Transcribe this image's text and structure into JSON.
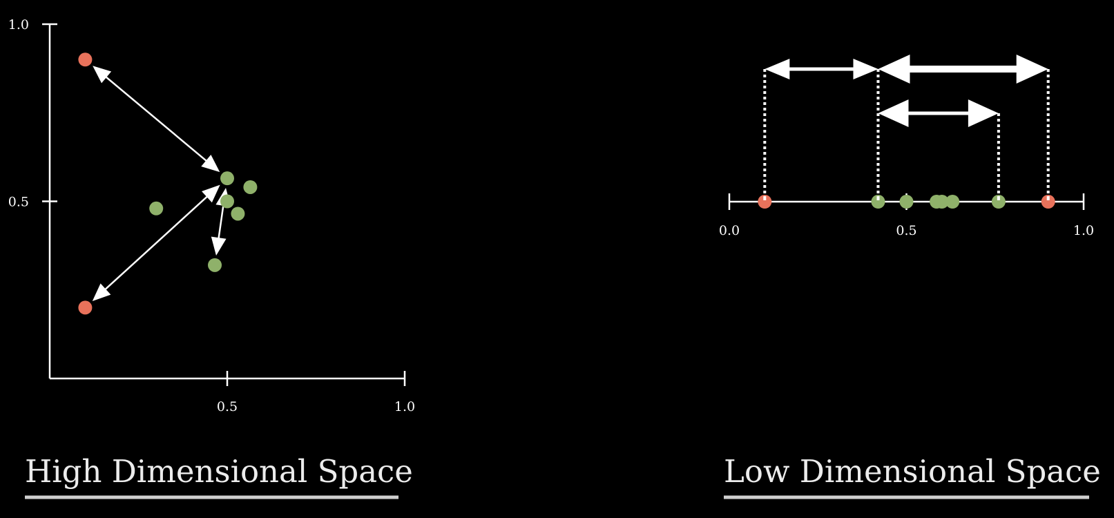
{
  "colors": {
    "background": "#000000",
    "axis": "#ffffff",
    "green_point": "#8fb16a",
    "red_point": "#e8725b",
    "title_text": "#ececec",
    "title_underline": "#cfcfcf"
  },
  "high_dim": {
    "title": "High Dimensional Space",
    "x_ticks": [
      {
        "value": 0.5,
        "label": "0.5"
      },
      {
        "value": 1.0,
        "label": "1.0"
      }
    ],
    "y_ticks": [
      {
        "value": 0.5,
        "label": "0.5"
      },
      {
        "value": 1.0,
        "label": "1.0"
      }
    ],
    "points": [
      {
        "x": 0.1,
        "y": 0.9,
        "group": "red"
      },
      {
        "x": 0.1,
        "y": 0.2,
        "group": "red"
      },
      {
        "x": 0.3,
        "y": 0.48,
        "group": "green"
      },
      {
        "x": 0.5,
        "y": 0.565,
        "group": "green"
      },
      {
        "x": 0.565,
        "y": 0.54,
        "group": "green"
      },
      {
        "x": 0.5,
        "y": 0.5,
        "group": "green"
      },
      {
        "x": 0.53,
        "y": 0.465,
        "group": "green"
      },
      {
        "x": 0.465,
        "y": 0.32,
        "group": "green"
      }
    ],
    "distance_arrows": [
      {
        "from": 0,
        "to": 3
      },
      {
        "from": 1,
        "to": 3
      },
      {
        "from": 7,
        "to": 3
      }
    ]
  },
  "low_dim": {
    "title": "Low Dimensional Space",
    "x_ticks": [
      {
        "value": 0.0,
        "label": "0.0"
      },
      {
        "value": 0.5,
        "label": "0.5"
      },
      {
        "value": 1.0,
        "label": "1.0"
      }
    ],
    "points": [
      {
        "x": 0.1,
        "group": "red"
      },
      {
        "x": 0.42,
        "group": "green"
      },
      {
        "x": 0.5,
        "group": "green"
      },
      {
        "x": 0.585,
        "group": "green"
      },
      {
        "x": 0.6,
        "group": "green"
      },
      {
        "x": 0.63,
        "group": "green"
      },
      {
        "x": 0.76,
        "group": "green"
      },
      {
        "x": 0.9,
        "group": "red"
      }
    ],
    "distance_arrows": [
      {
        "from": 0.1,
        "to": 0.42,
        "level": "upper",
        "weight": "medium"
      },
      {
        "from": 0.42,
        "to": 0.9,
        "level": "upper",
        "weight": "heavy"
      },
      {
        "from": 0.42,
        "to": 0.76,
        "level": "lower",
        "weight": "medium"
      }
    ]
  }
}
